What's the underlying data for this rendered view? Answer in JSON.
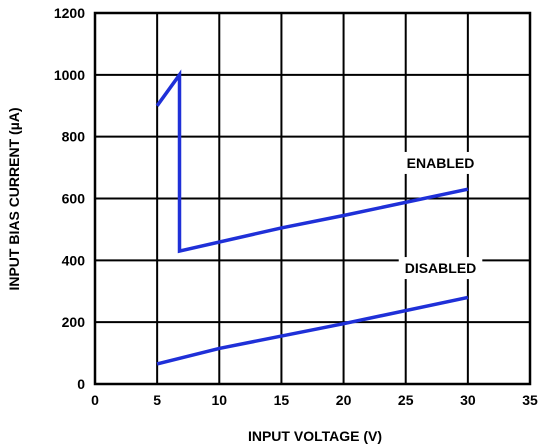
{
  "chart_data": {
    "type": "line",
    "xlabel": "INPUT VOLTAGE (V)",
    "ylabel": "INPUT BIAS CURRENT (µA)",
    "xlim": [
      0,
      35
    ],
    "ylim": [
      0,
      1200
    ],
    "x_ticks": [
      0,
      5,
      10,
      15,
      20,
      25,
      30,
      35
    ],
    "y_ticks": [
      0,
      200,
      400,
      600,
      800,
      1000,
      1200
    ],
    "grid": true,
    "series": [
      {
        "points": [
          [
            5,
            900
          ],
          [
            6.8,
            1000
          ],
          [
            6.8,
            430
          ],
          [
            15,
            505
          ],
          [
            20,
            545
          ],
          [
            30,
            630
          ]
        ]
      },
      {
        "points": [
          [
            5,
            65
          ],
          [
            10,
            115
          ],
          [
            20,
            195
          ],
          [
            30,
            280
          ]
        ]
      }
    ],
    "annotations": [
      {
        "text": "ENABLED",
        "x": 27.8,
        "y": 715
      },
      {
        "text": "DISABLED",
        "x": 27.8,
        "y": 375
      }
    ],
    "colors": {
      "line": "#1f30d8",
      "grid": "#000000",
      "text": "#000000"
    }
  }
}
